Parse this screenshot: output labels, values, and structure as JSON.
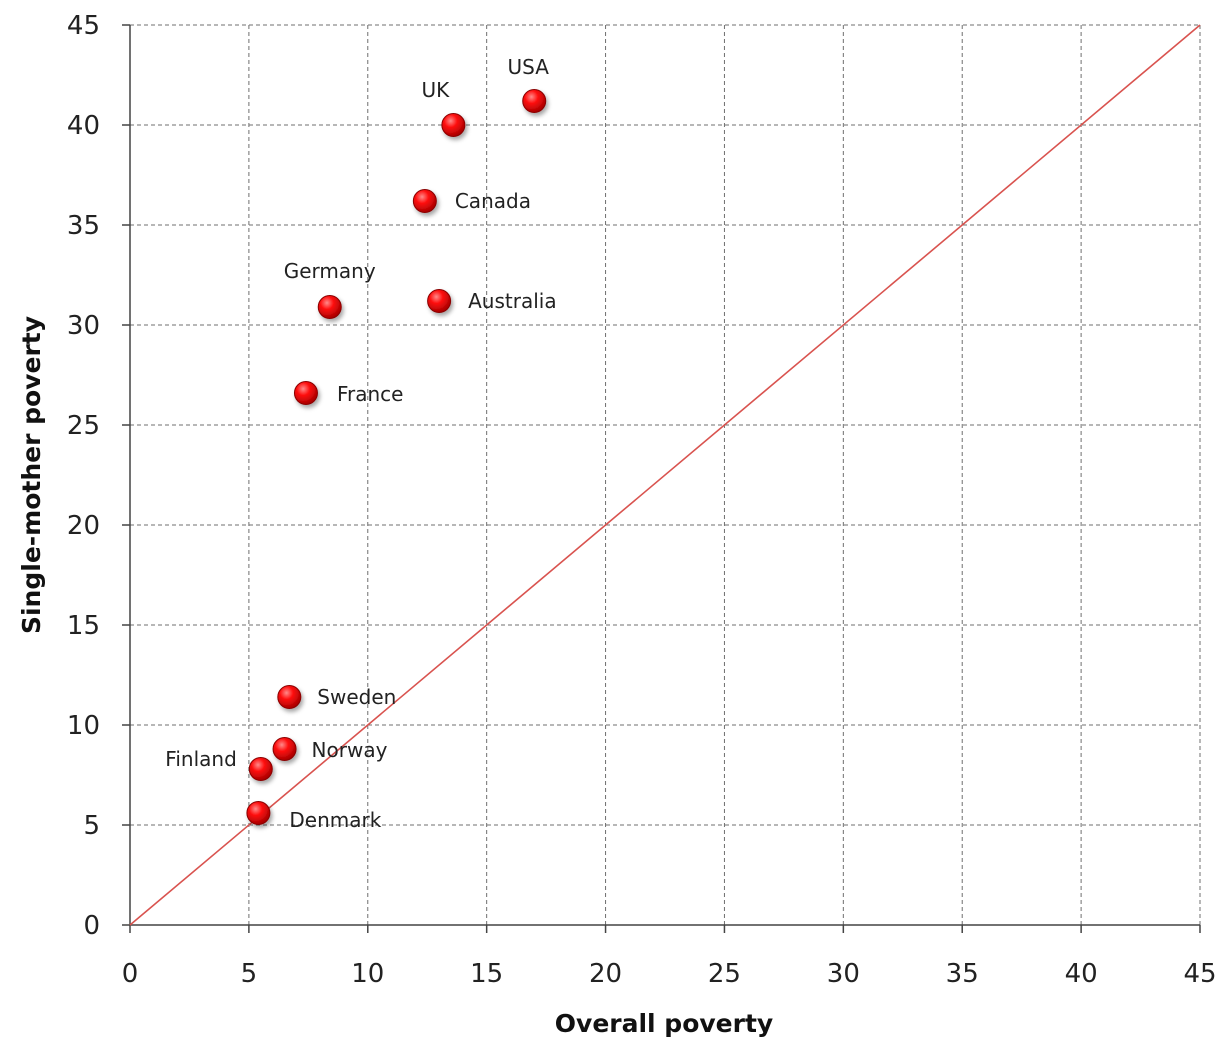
{
  "chart_data": {
    "type": "scatter",
    "title": "",
    "xlabel": "Overall poverty",
    "ylabel": "Single-mother poverty",
    "xlim": [
      0,
      45
    ],
    "ylim": [
      0,
      45
    ],
    "x_ticks": [
      0,
      5,
      10,
      15,
      20,
      25,
      30,
      35,
      40,
      45
    ],
    "y_ticks": [
      0,
      5,
      10,
      15,
      20,
      25,
      30,
      35,
      40,
      45
    ],
    "grid": true,
    "reference_line": {
      "from": [
        0,
        0
      ],
      "to": [
        45,
        45
      ]
    },
    "colors": {
      "marker": "#e8000b",
      "marker_edge": "#8b0000",
      "reference_line": "#d9534f",
      "grid": "#6f6f6f"
    },
    "points": [
      {
        "label": "USA",
        "x": 17.0,
        "y": 41.2
      },
      {
        "label": "UK",
        "x": 13.6,
        "y": 40.0
      },
      {
        "label": "Canada",
        "x": 12.4,
        "y": 36.2
      },
      {
        "label": "Germany",
        "x": 8.4,
        "y": 30.9
      },
      {
        "label": "Australia",
        "x": 13.0,
        "y": 31.2
      },
      {
        "label": "France",
        "x": 7.4,
        "y": 26.6
      },
      {
        "label": "Sweden",
        "x": 6.7,
        "y": 11.4
      },
      {
        "label": "Norway",
        "x": 6.5,
        "y": 8.8
      },
      {
        "label": "Finland",
        "x": 5.5,
        "y": 7.8
      },
      {
        "label": "Denmark",
        "x": 5.4,
        "y": 5.6
      }
    ]
  }
}
